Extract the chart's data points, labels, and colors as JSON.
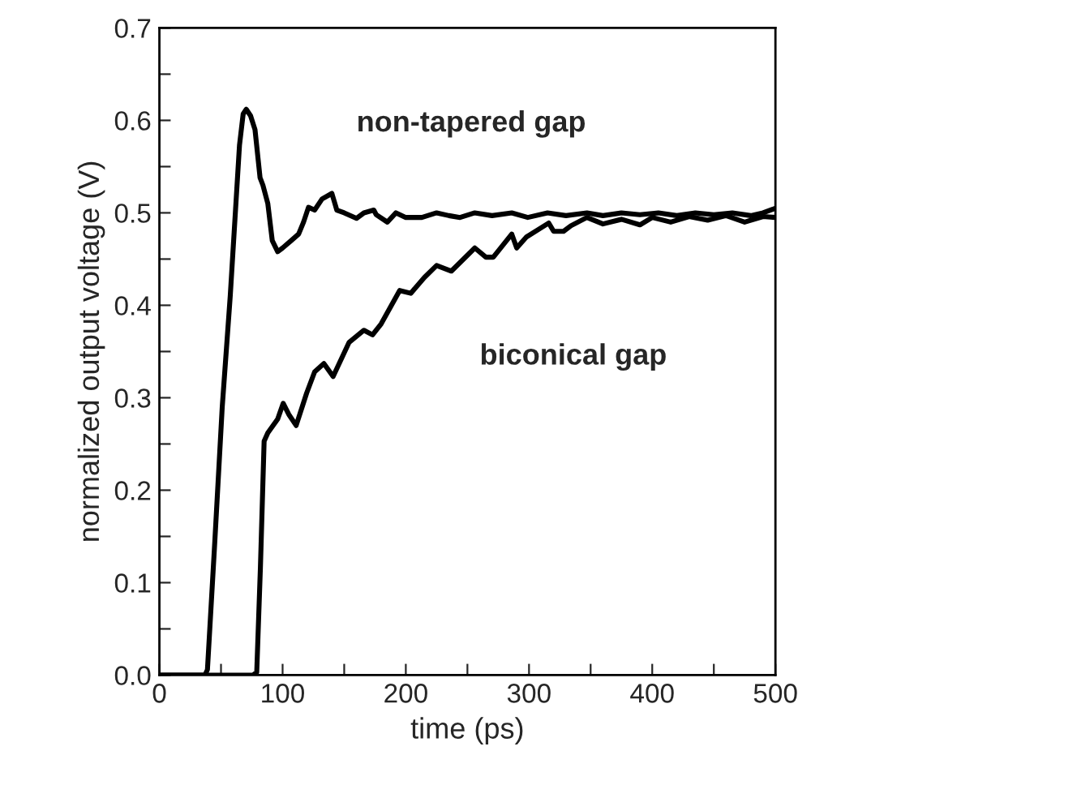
{
  "chart_data": {
    "type": "line",
    "xlabel": "time (ps)",
    "ylabel": "normalized output voltage (V)",
    "annotations": [
      "non-tapered gap",
      "biconical gap"
    ],
    "xlim": [
      0,
      500
    ],
    "ylim": [
      0,
      0.7
    ],
    "xticks": [
      0,
      {
        "value": 50,
        "label": null
      },
      100,
      {
        "value": 150,
        "label": null
      },
      200,
      {
        "value": 250,
        "label": null
      },
      300,
      {
        "value": 350,
        "label": null
      },
      400,
      {
        "value": 450,
        "label": null
      },
      500
    ],
    "yticks": [
      {
        "value": 0,
        "label": "0.0"
      },
      {
        "value": 0.05,
        "label": null
      },
      0.1,
      {
        "value": 0.15,
        "label": null
      },
      0.2,
      {
        "value": 0.25,
        "label": null
      },
      0.3,
      {
        "value": 0.35,
        "label": null
      },
      0.4,
      {
        "value": 0.45,
        "label": null
      },
      0.5,
      {
        "value": 0.55,
        "label": null
      },
      0.6,
      {
        "value": 0.65,
        "label": null
      },
      0.7
    ],
    "grid": false,
    "legend": false,
    "line_style": "solid",
    "marker": "none",
    "series": [
      {
        "color": "#000000",
        "x": [
          0,
          37,
          39,
          45,
          51,
          57.5,
          65,
          68,
          70.5,
          74,
          77.6,
          81.7,
          84,
          88,
          91.6,
          96,
          100,
          107,
          113,
          117,
          121,
          126,
          132,
          140,
          144,
          150,
          160,
          166,
          174,
          176,
          185,
          192,
          200,
          213,
          225,
          235,
          244,
          256,
          270,
          286,
          299,
          315,
          330,
          347,
          360,
          375,
          390,
          405,
          420,
          435,
          450,
          465,
          480,
          490,
          500
        ],
        "values": [
          0,
          0,
          0.006,
          0.145,
          0.29,
          0.41,
          0.573,
          0.607,
          0.612,
          0.605,
          0.59,
          0.538,
          0.53,
          0.51,
          0.47,
          0.458,
          0.462,
          0.47,
          0.477,
          0.49,
          0.506,
          0.503,
          0.515,
          0.521,
          0.503,
          0.5,
          0.494,
          0.5,
          0.503,
          0.498,
          0.49,
          0.5,
          0.495,
          0.495,
          0.5,
          0.497,
          0.495,
          0.5,
          0.497,
          0.5,
          0.495,
          0.5,
          0.497,
          0.5,
          0.497,
          0.5,
          0.498,
          0.5,
          0.497,
          0.5,
          0.498,
          0.5,
          0.497,
          0.5,
          0.505
        ]
      },
      {
        "color": "#000000",
        "x": [
          0,
          76,
          79,
          82,
          85,
          88,
          96,
          100.5,
          105,
          111,
          119.5,
          126,
          133.5,
          141,
          154,
          166,
          173,
          180,
          195,
          204,
          215,
          225,
          237,
          256,
          265,
          271,
          286,
          290,
          298,
          316,
          320,
          328,
          334,
          347,
          360,
          375,
          390,
          400,
          415,
          430,
          445,
          460,
          475,
          490,
          500
        ],
        "values": [
          0,
          0,
          0.003,
          0.117,
          0.253,
          0.262,
          0.277,
          0.294,
          0.282,
          0.27,
          0.305,
          0.328,
          0.337,
          0.323,
          0.36,
          0.373,
          0.368,
          0.38,
          0.416,
          0.413,
          0.43,
          0.443,
          0.437,
          0.462,
          0.452,
          0.452,
          0.477,
          0.462,
          0.474,
          0.489,
          0.48,
          0.48,
          0.486,
          0.495,
          0.488,
          0.493,
          0.487,
          0.495,
          0.49,
          0.496,
          0.492,
          0.497,
          0.49,
          0.496,
          0.495
        ]
      }
    ]
  }
}
